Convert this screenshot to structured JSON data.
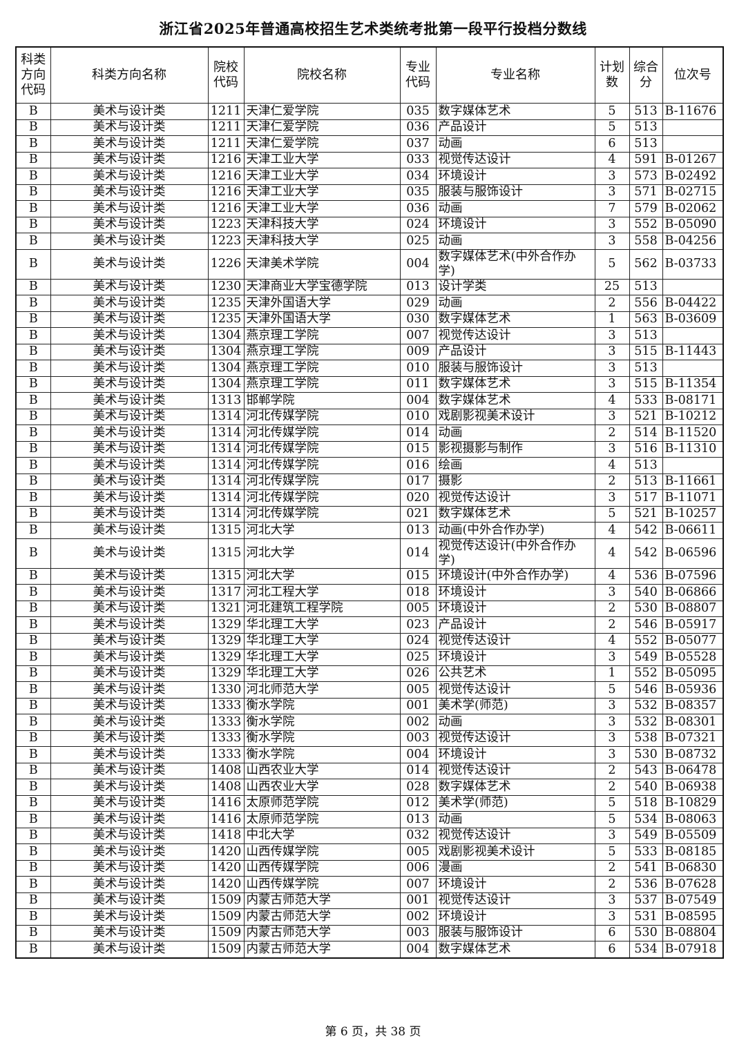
{
  "title": "浙江省2025年普通高校招生艺术类统考批第一段平行投档分数线",
  "headers": [
    "科类方向代码",
    "科类方向名称",
    "院校代码",
    "院校名称",
    "专业代码",
    "专业名称",
    "计划数",
    "综合分",
    "位次号"
  ],
  "rows": [
    [
      "B",
      "美术与设计类",
      "1211",
      "天津仁爱学院",
      "035",
      "数字媒体艺术",
      "5",
      "513",
      "B-11676"
    ],
    [
      "B",
      "美术与设计类",
      "1211",
      "天津仁爱学院",
      "036",
      "产品设计",
      "5",
      "513",
      ""
    ],
    [
      "B",
      "美术与设计类",
      "1211",
      "天津仁爱学院",
      "037",
      "动画",
      "6",
      "513",
      ""
    ],
    [
      "B",
      "美术与设计类",
      "1216",
      "天津工业大学",
      "033",
      "视觉传达设计",
      "4",
      "591",
      "B-01267"
    ],
    [
      "B",
      "美术与设计类",
      "1216",
      "天津工业大学",
      "034",
      "环境设计",
      "3",
      "573",
      "B-02492"
    ],
    [
      "B",
      "美术与设计类",
      "1216",
      "天津工业大学",
      "035",
      "服装与服饰设计",
      "3",
      "571",
      "B-02715"
    ],
    [
      "B",
      "美术与设计类",
      "1216",
      "天津工业大学",
      "036",
      "动画",
      "7",
      "579",
      "B-02062"
    ],
    [
      "B",
      "美术与设计类",
      "1223",
      "天津科技大学",
      "024",
      "环境设计",
      "3",
      "552",
      "B-05090"
    ],
    [
      "B",
      "美术与设计类",
      "1223",
      "天津科技大学",
      "025",
      "动画",
      "3",
      "558",
      "B-04256"
    ],
    [
      "B",
      "美术与设计类",
      "1226",
      "天津美术学院",
      "004",
      "数字媒体艺术(中外合作办学)",
      "5",
      "562",
      "B-03733"
    ],
    [
      "B",
      "美术与设计类",
      "1230",
      "天津商业大学宝德学院",
      "013",
      "设计学类",
      "25",
      "513",
      ""
    ],
    [
      "B",
      "美术与设计类",
      "1235",
      "天津外国语大学",
      "029",
      "动画",
      "2",
      "556",
      "B-04422"
    ],
    [
      "B",
      "美术与设计类",
      "1235",
      "天津外国语大学",
      "030",
      "数字媒体艺术",
      "1",
      "563",
      "B-03609"
    ],
    [
      "B",
      "美术与设计类",
      "1304",
      "燕京理工学院",
      "007",
      "视觉传达设计",
      "3",
      "513",
      ""
    ],
    [
      "B",
      "美术与设计类",
      "1304",
      "燕京理工学院",
      "009",
      "产品设计",
      "3",
      "515",
      "B-11443"
    ],
    [
      "B",
      "美术与设计类",
      "1304",
      "燕京理工学院",
      "010",
      "服装与服饰设计",
      "3",
      "513",
      ""
    ],
    [
      "B",
      "美术与设计类",
      "1304",
      "燕京理工学院",
      "011",
      "数字媒体艺术",
      "3",
      "515",
      "B-11354"
    ],
    [
      "B",
      "美术与设计类",
      "1313",
      "邯郸学院",
      "004",
      "数字媒体艺术",
      "4",
      "533",
      "B-08171"
    ],
    [
      "B",
      "美术与设计类",
      "1314",
      "河北传媒学院",
      "010",
      "戏剧影视美术设计",
      "3",
      "521",
      "B-10212"
    ],
    [
      "B",
      "美术与设计类",
      "1314",
      "河北传媒学院",
      "014",
      "动画",
      "2",
      "514",
      "B-11520"
    ],
    [
      "B",
      "美术与设计类",
      "1314",
      "河北传媒学院",
      "015",
      "影视摄影与制作",
      "3",
      "516",
      "B-11310"
    ],
    [
      "B",
      "美术与设计类",
      "1314",
      "河北传媒学院",
      "016",
      "绘画",
      "4",
      "513",
      ""
    ],
    [
      "B",
      "美术与设计类",
      "1314",
      "河北传媒学院",
      "017",
      "摄影",
      "2",
      "513",
      "B-11661"
    ],
    [
      "B",
      "美术与设计类",
      "1314",
      "河北传媒学院",
      "020",
      "视觉传达设计",
      "3",
      "517",
      "B-11071"
    ],
    [
      "B",
      "美术与设计类",
      "1314",
      "河北传媒学院",
      "021",
      "数字媒体艺术",
      "5",
      "521",
      "B-10257"
    ],
    [
      "B",
      "美术与设计类",
      "1315",
      "河北大学",
      "013",
      "动画(中外合作办学)",
      "4",
      "542",
      "B-06611"
    ],
    [
      "B",
      "美术与设计类",
      "1315",
      "河北大学",
      "014",
      "视觉传达设计(中外合作办学)",
      "4",
      "542",
      "B-06596"
    ],
    [
      "B",
      "美术与设计类",
      "1315",
      "河北大学",
      "015",
      "环境设计(中外合作办学)",
      "4",
      "536",
      "B-07596"
    ],
    [
      "B",
      "美术与设计类",
      "1317",
      "河北工程大学",
      "018",
      "环境设计",
      "3",
      "540",
      "B-06866"
    ],
    [
      "B",
      "美术与设计类",
      "1321",
      "河北建筑工程学院",
      "005",
      "环境设计",
      "2",
      "530",
      "B-08807"
    ],
    [
      "B",
      "美术与设计类",
      "1329",
      "华北理工大学",
      "023",
      "产品设计",
      "2",
      "546",
      "B-05917"
    ],
    [
      "B",
      "美术与设计类",
      "1329",
      "华北理工大学",
      "024",
      "视觉传达设计",
      "4",
      "552",
      "B-05077"
    ],
    [
      "B",
      "美术与设计类",
      "1329",
      "华北理工大学",
      "025",
      "环境设计",
      "3",
      "549",
      "B-05528"
    ],
    [
      "B",
      "美术与设计类",
      "1329",
      "华北理工大学",
      "026",
      "公共艺术",
      "1",
      "552",
      "B-05095"
    ],
    [
      "B",
      "美术与设计类",
      "1330",
      "河北师范大学",
      "005",
      "视觉传达设计",
      "5",
      "546",
      "B-05936"
    ],
    [
      "B",
      "美术与设计类",
      "1333",
      "衡水学院",
      "001",
      "美术学(师范)",
      "3",
      "532",
      "B-08357"
    ],
    [
      "B",
      "美术与设计类",
      "1333",
      "衡水学院",
      "002",
      "动画",
      "3",
      "532",
      "B-08301"
    ],
    [
      "B",
      "美术与设计类",
      "1333",
      "衡水学院",
      "003",
      "视觉传达设计",
      "3",
      "538",
      "B-07321"
    ],
    [
      "B",
      "美术与设计类",
      "1333",
      "衡水学院",
      "004",
      "环境设计",
      "3",
      "530",
      "B-08732"
    ],
    [
      "B",
      "美术与设计类",
      "1408",
      "山西农业大学",
      "014",
      "视觉传达设计",
      "2",
      "543",
      "B-06478"
    ],
    [
      "B",
      "美术与设计类",
      "1408",
      "山西农业大学",
      "028",
      "数字媒体艺术",
      "2",
      "540",
      "B-06938"
    ],
    [
      "B",
      "美术与设计类",
      "1416",
      "太原师范学院",
      "012",
      "美术学(师范)",
      "5",
      "518",
      "B-10829"
    ],
    [
      "B",
      "美术与设计类",
      "1416",
      "太原师范学院",
      "013",
      "动画",
      "5",
      "534",
      "B-08063"
    ],
    [
      "B",
      "美术与设计类",
      "1418",
      "中北大学",
      "032",
      "视觉传达设计",
      "3",
      "549",
      "B-05509"
    ],
    [
      "B",
      "美术与设计类",
      "1420",
      "山西传媒学院",
      "005",
      "戏剧影视美术设计",
      "5",
      "533",
      "B-08185"
    ],
    [
      "B",
      "美术与设计类",
      "1420",
      "山西传媒学院",
      "006",
      "漫画",
      "2",
      "541",
      "B-06830"
    ],
    [
      "B",
      "美术与设计类",
      "1420",
      "山西传媒学院",
      "007",
      "环境设计",
      "2",
      "536",
      "B-07628"
    ],
    [
      "B",
      "美术与设计类",
      "1509",
      "内蒙古师范大学",
      "001",
      "视觉传达设计",
      "3",
      "537",
      "B-07549"
    ],
    [
      "B",
      "美术与设计类",
      "1509",
      "内蒙古师范大学",
      "002",
      "环境设计",
      "3",
      "531",
      "B-08595"
    ],
    [
      "B",
      "美术与设计类",
      "1509",
      "内蒙古师范大学",
      "003",
      "服装与服饰设计",
      "6",
      "530",
      "B-08804"
    ],
    [
      "B",
      "美术与设计类",
      "1509",
      "内蒙古师范大学",
      "004",
      "数字媒体艺术",
      "6",
      "534",
      "B-07918"
    ]
  ],
  "footer": "第 6 页，共 38 页"
}
